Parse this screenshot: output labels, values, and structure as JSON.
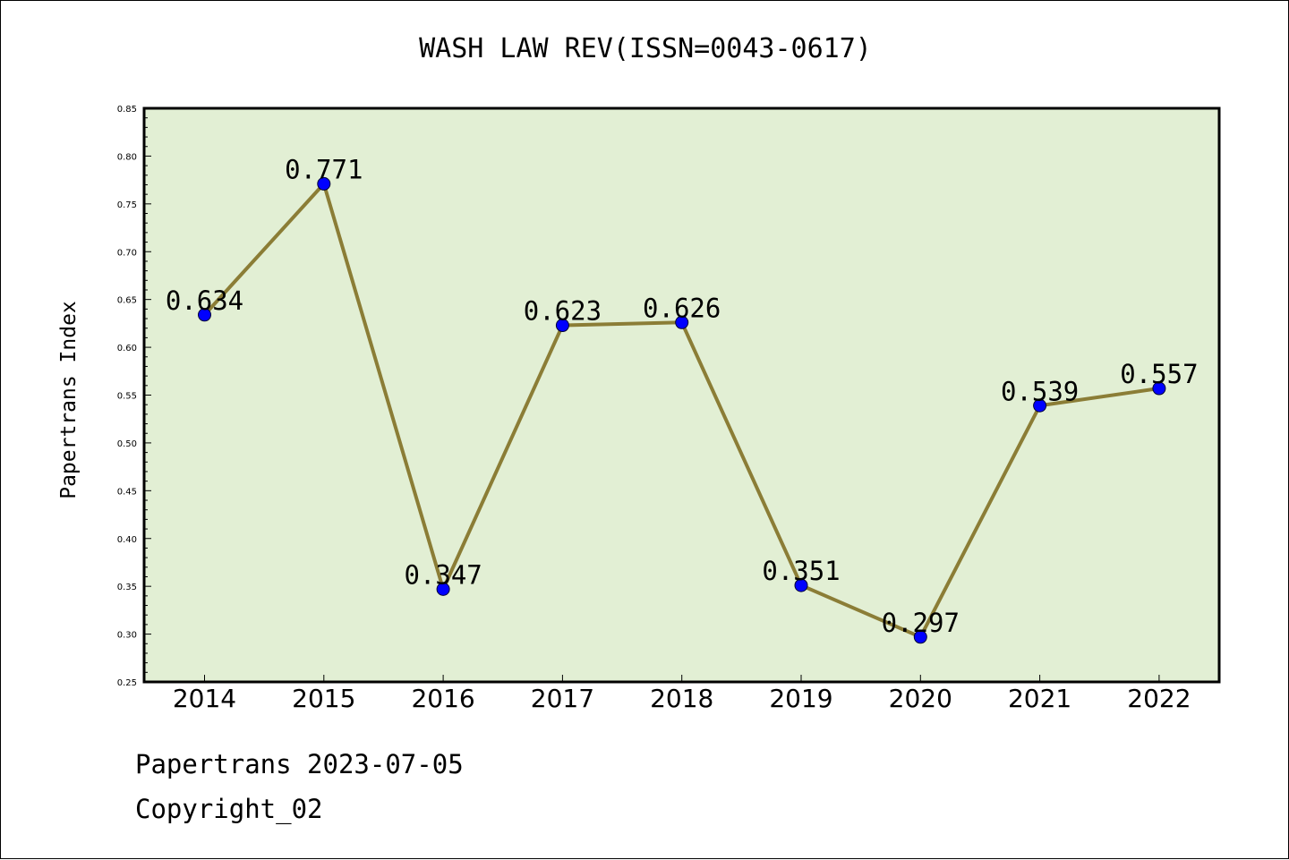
{
  "chart_data": {
    "type": "line",
    "title": "WASH LAW REV(ISSN=0043-0617)",
    "xlabel": "",
    "ylabel": "Papertrans Index",
    "categories": [
      "2014",
      "2015",
      "2016",
      "2017",
      "2018",
      "2019",
      "2020",
      "2021",
      "2022"
    ],
    "series": [
      {
        "values": [
          0.634,
          0.771,
          0.347,
          0.623,
          0.626,
          0.351,
          0.297,
          0.539,
          0.557
        ],
        "data_labels": [
          "0.634",
          "0.771",
          "0.347",
          "0.623",
          "0.626",
          "0.351",
          "0.297",
          "0.539",
          "0.557"
        ]
      }
    ],
    "ylim": [
      0.25,
      0.85
    ],
    "y_ticks": [
      "0.25",
      "0.30",
      "0.35",
      "0.40",
      "0.45",
      "0.50",
      "0.55",
      "0.60",
      "0.65",
      "0.70",
      "0.75",
      "0.80",
      "0.85"
    ],
    "grid": false,
    "legend": "none",
    "colors": {
      "plot_background": "#e2efd4",
      "line": "#8b7d36",
      "marker": "#0000ff",
      "frame": "#000000"
    }
  },
  "footer": {
    "line1": "Papertrans 2023-07-05",
    "line2": "Copyright_02"
  }
}
